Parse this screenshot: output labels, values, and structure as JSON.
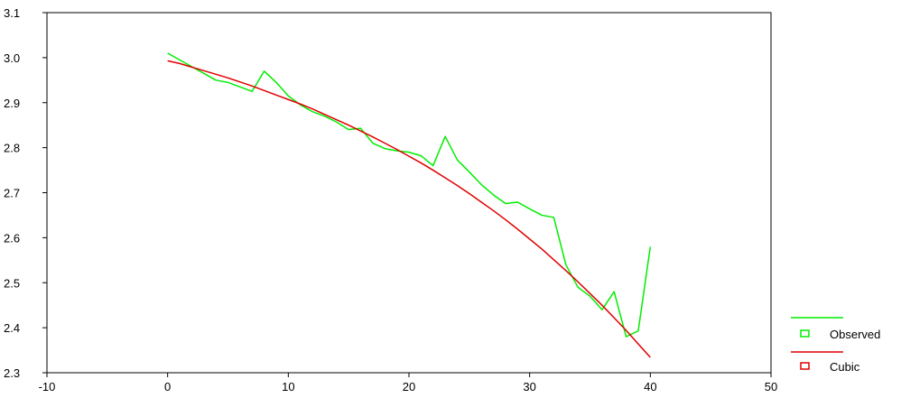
{
  "chart_data": {
    "type": "line",
    "title": "",
    "xlabel": "",
    "ylabel": "",
    "xlim": [
      -10,
      50
    ],
    "ylim": [
      2.3,
      3.1
    ],
    "x_ticks": [
      -10,
      0,
      10,
      20,
      30,
      40,
      50
    ],
    "x_tick_labels": [
      "-10",
      "0",
      "10",
      "20",
      "30",
      "40",
      "50"
    ],
    "y_ticks": [
      2.3,
      2.4,
      2.5,
      2.6,
      2.7,
      2.8,
      2.9,
      3.0,
      3.1
    ],
    "y_tick_labels": [
      "2.3",
      "2.4",
      "2.5",
      "2.6",
      "2.7",
      "2.8",
      "2.9",
      "3.0",
      "3.1"
    ],
    "grid": false,
    "legend_position": "bottom-right",
    "x": [
      0,
      1,
      2,
      3,
      4,
      5,
      6,
      7,
      8,
      9,
      10,
      11,
      12,
      13,
      14,
      15,
      16,
      17,
      18,
      19,
      20,
      21,
      22,
      23,
      24,
      25,
      26,
      27,
      28,
      29,
      30,
      31,
      32,
      33,
      34,
      35,
      36,
      37,
      38,
      39,
      40
    ],
    "series": [
      {
        "name": "Observed",
        "color": "#00ee00",
        "values": [
          3.01,
          2.995,
          2.98,
          2.965,
          2.95,
          2.945,
          2.935,
          2.925,
          2.97,
          2.945,
          2.915,
          2.895,
          2.88,
          2.87,
          2.857,
          2.84,
          2.843,
          2.81,
          2.798,
          2.793,
          2.79,
          2.782,
          2.76,
          2.825,
          2.773,
          2.746,
          2.718,
          2.695,
          2.676,
          2.679,
          2.664,
          2.65,
          2.645,
          2.54,
          2.49,
          2.47,
          2.44,
          2.48,
          2.38,
          2.393,
          2.58
        ]
      },
      {
        "name": "Cubic",
        "color": "#e00000",
        "values": [
          2.993,
          2.987,
          2.979,
          2.971,
          2.963,
          2.955,
          2.946,
          2.937,
          2.927,
          2.917,
          2.907,
          2.897,
          2.886,
          2.874,
          2.862,
          2.85,
          2.837,
          2.824,
          2.81,
          2.796,
          2.781,
          2.766,
          2.75,
          2.733,
          2.716,
          2.698,
          2.679,
          2.66,
          2.64,
          2.619,
          2.597,
          2.575,
          2.551,
          2.527,
          2.502,
          2.476,
          2.45,
          2.422,
          2.394,
          2.364,
          2.334
        ]
      }
    ]
  }
}
